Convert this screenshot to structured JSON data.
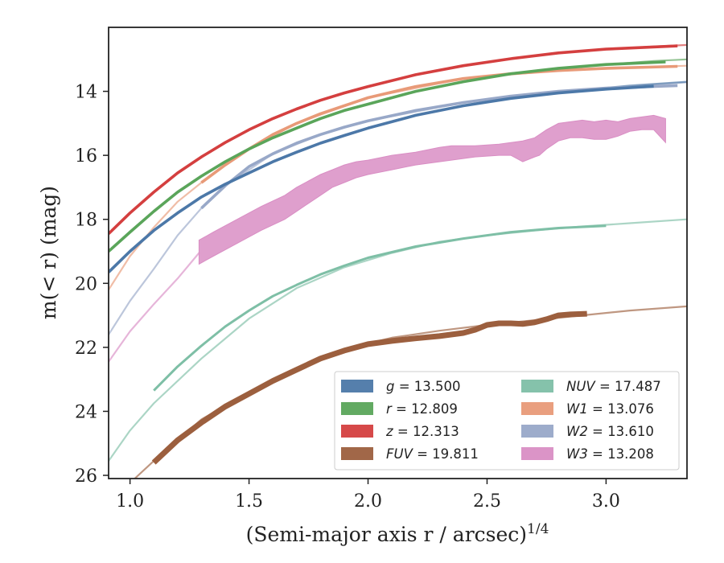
{
  "chart_data": {
    "type": "line",
    "xlabel": "(Semi-major axis r / arcsec)",
    "xlabel_exponent": "1/4",
    "ylabel": "m(< r) (mag)",
    "xlim": [
      0.91,
      3.34
    ],
    "ylim": [
      26.1,
      12.0
    ],
    "y_inverted": true,
    "grid": false,
    "legend_position": "lower-right",
    "xticks": [
      "1.0",
      "1.5",
      "2.0",
      "2.5",
      "3.0"
    ],
    "yticks": [
      "14",
      "16",
      "18",
      "20",
      "22",
      "24",
      "26"
    ],
    "series": [
      {
        "name": "g = 13.500",
        "band": "g",
        "prefix": "g",
        "italic": true,
        "value": "13.500",
        "color": "#4c78a8",
        "data_x": [
          0.91,
          1.0,
          1.1,
          1.2,
          1.3,
          1.4,
          1.5,
          1.6,
          1.7,
          1.8,
          1.9,
          2.0,
          2.2,
          2.4,
          2.6,
          2.8,
          3.0,
          3.2
        ],
        "data_y": [
          19.65,
          19.0,
          18.35,
          17.8,
          17.3,
          16.9,
          16.55,
          16.2,
          15.9,
          15.62,
          15.38,
          15.15,
          14.75,
          14.45,
          14.22,
          14.05,
          13.93,
          13.84
        ],
        "extrap_x": [
          2.9,
          3.1,
          3.34
        ],
        "extrap_y": [
          13.96,
          13.82,
          13.7
        ]
      },
      {
        "name": "r = 12.809",
        "band": "r",
        "prefix": "r",
        "italic": true,
        "value": "12.809",
        "color": "#5aa55a",
        "data_x": [
          0.91,
          1.0,
          1.1,
          1.2,
          1.3,
          1.4,
          1.5,
          1.6,
          1.7,
          1.8,
          1.9,
          2.0,
          2.2,
          2.4,
          2.6,
          2.8,
          3.0,
          3.25
        ],
        "data_y": [
          19.0,
          18.4,
          17.75,
          17.15,
          16.65,
          16.2,
          15.8,
          15.45,
          15.15,
          14.85,
          14.6,
          14.4,
          14.0,
          13.7,
          13.45,
          13.28,
          13.16,
          13.08
        ],
        "extrap_x": [
          3.0,
          3.2,
          3.34
        ],
        "extrap_y": [
          13.16,
          13.05,
          13.0
        ]
      },
      {
        "name": "z = 12.313",
        "band": "z",
        "prefix": "z",
        "italic": true,
        "value": "12.313",
        "color": "#d43f3f",
        "data_x": [
          0.91,
          1.0,
          1.1,
          1.2,
          1.3,
          1.4,
          1.5,
          1.6,
          1.7,
          1.8,
          1.9,
          2.0,
          2.2,
          2.4,
          2.6,
          2.8,
          3.0,
          3.3
        ],
        "data_y": [
          18.45,
          17.8,
          17.15,
          16.55,
          16.05,
          15.6,
          15.2,
          14.85,
          14.55,
          14.28,
          14.05,
          13.85,
          13.48,
          13.2,
          12.98,
          12.8,
          12.68,
          12.58
        ],
        "extrap_x": [
          3.0,
          3.2,
          3.34
        ],
        "extrap_y": [
          12.68,
          12.6,
          12.55
        ]
      },
      {
        "name": "FUV = 19.811",
        "band": "FUV",
        "prefix": "FUV",
        "italic": true,
        "value": "19.811",
        "color": "#9c5f3e",
        "data_x": [
          1.1,
          1.2,
          1.3,
          1.4,
          1.5,
          1.6,
          1.7,
          1.8,
          1.9,
          2.0,
          2.1,
          2.2,
          2.3,
          2.4,
          2.45,
          2.5,
          2.55,
          2.6,
          2.65,
          2.7,
          2.75,
          2.8,
          2.85,
          2.92
        ],
        "data_y": [
          25.6,
          24.9,
          24.35,
          23.85,
          23.45,
          23.05,
          22.7,
          22.35,
          22.1,
          21.9,
          21.8,
          21.72,
          21.65,
          21.55,
          21.45,
          21.3,
          21.25,
          21.25,
          21.27,
          21.22,
          21.12,
          21.0,
          20.97,
          20.95
        ],
        "extrap_x": [
          1.02,
          1.1,
          1.3,
          1.5,
          1.7,
          1.9,
          2.1,
          2.3,
          2.5,
          2.7,
          2.9,
          3.1,
          3.34
        ],
        "extrap_y": [
          26.1,
          25.55,
          24.25,
          23.4,
          22.65,
          22.05,
          21.7,
          21.48,
          21.3,
          21.15,
          21.0,
          20.85,
          20.72
        ]
      },
      {
        "name": "NUV = 17.487",
        "band": "NUV",
        "prefix": "NUV",
        "italic": true,
        "value": "17.487",
        "color": "#7ebfa6",
        "data_x": [
          1.1,
          1.2,
          1.3,
          1.4,
          1.5,
          1.6,
          1.7,
          1.8,
          1.9,
          2.0,
          2.2,
          2.4,
          2.6,
          2.8,
          3.0
        ],
        "data_y": [
          23.35,
          22.6,
          21.95,
          21.35,
          20.85,
          20.4,
          20.05,
          19.72,
          19.45,
          19.2,
          18.85,
          18.6,
          18.4,
          18.27,
          18.2
        ],
        "extrap_x": [
          0.91,
          1.0,
          1.1,
          1.3,
          1.5,
          1.7,
          1.9,
          2.1,
          2.3,
          2.5,
          2.7,
          2.9,
          3.1,
          3.34
        ],
        "extrap_y": [
          25.55,
          24.6,
          23.75,
          22.35,
          21.1,
          20.15,
          19.5,
          19.05,
          18.7,
          18.5,
          18.35,
          18.22,
          18.12,
          18.0
        ]
      },
      {
        "name": "W1 = 13.076",
        "band": "W1",
        "prefix": "W1",
        "italic": true,
        "value": "13.076",
        "color": "#e89a78",
        "data_x": [
          1.3,
          1.4,
          1.5,
          1.6,
          1.7,
          1.8,
          1.9,
          2.0,
          2.2,
          2.4,
          2.6,
          2.8,
          3.0,
          3.3
        ],
        "data_y": [
          16.85,
          16.3,
          15.8,
          15.35,
          15.0,
          14.7,
          14.45,
          14.2,
          13.85,
          13.6,
          13.45,
          13.35,
          13.28,
          13.22
        ],
        "extrap_x": [
          0.91,
          1.0,
          1.1,
          1.2,
          1.3,
          1.4,
          1.5,
          1.7,
          2.0,
          2.4,
          2.8,
          3.34
        ],
        "extrap_y": [
          20.2,
          19.15,
          18.25,
          17.45,
          16.85,
          16.3,
          15.8,
          15.0,
          14.2,
          13.6,
          13.35,
          13.2
        ]
      },
      {
        "name": "W2 = 13.610",
        "band": "W2",
        "prefix": "W2",
        "italic": true,
        "value": "13.610",
        "color": "#98a8c8",
        "data_x": [
          1.3,
          1.4,
          1.5,
          1.6,
          1.7,
          1.8,
          1.9,
          2.0,
          2.2,
          2.4,
          2.6,
          2.8,
          3.0,
          3.3
        ],
        "data_y": [
          17.65,
          16.95,
          16.35,
          15.95,
          15.62,
          15.35,
          15.12,
          14.92,
          14.6,
          14.35,
          14.15,
          14.0,
          13.9,
          13.82
        ],
        "extrap_x": [
          0.91,
          1.0,
          1.1,
          1.2,
          1.3,
          1.4,
          1.6,
          1.8,
          2.0,
          2.4,
          2.8,
          3.34
        ],
        "extrap_y": [
          21.6,
          20.55,
          19.55,
          18.5,
          17.65,
          16.95,
          15.95,
          15.35,
          14.92,
          14.35,
          14.0,
          13.72
        ]
      },
      {
        "name": "W3 = 13.208",
        "band": "W3",
        "prefix": "W3",
        "italic": true,
        "value": "13.208",
        "color": "#d98ec4",
        "band_x": [
          1.29,
          1.35,
          1.45,
          1.55,
          1.65,
          1.7,
          1.75,
          1.8,
          1.85,
          1.9,
          1.95,
          2.0,
          2.1,
          2.2,
          2.3,
          2.35,
          2.45,
          2.55,
          2.6,
          2.65,
          2.7,
          2.72,
          2.75,
          2.8,
          2.85,
          2.9,
          2.95,
          3.0,
          3.05,
          3.1,
          3.15,
          3.2,
          3.25
        ],
        "band_low": [
          18.65,
          18.4,
          18.0,
          17.6,
          17.25,
          17.0,
          16.8,
          16.6,
          16.45,
          16.3,
          16.2,
          16.15,
          16.0,
          15.9,
          15.75,
          15.7,
          15.7,
          15.65,
          15.6,
          15.55,
          15.45,
          15.35,
          15.2,
          15.0,
          14.95,
          14.9,
          14.95,
          14.9,
          14.95,
          14.85,
          14.8,
          14.75,
          14.85
        ],
        "band_high": [
          19.4,
          19.15,
          18.75,
          18.35,
          18.0,
          17.75,
          17.5,
          17.25,
          17.0,
          16.85,
          16.7,
          16.6,
          16.45,
          16.3,
          16.2,
          16.15,
          16.05,
          16.0,
          16.0,
          16.2,
          16.05,
          16.0,
          15.8,
          15.55,
          15.45,
          15.45,
          15.5,
          15.5,
          15.4,
          15.25,
          15.2,
          15.2,
          15.6
        ],
        "extrap_x": [
          0.91,
          1.0,
          1.1,
          1.2,
          1.29
        ],
        "extrap_y": [
          22.45,
          21.5,
          20.65,
          19.85,
          19.05
        ]
      }
    ]
  }
}
